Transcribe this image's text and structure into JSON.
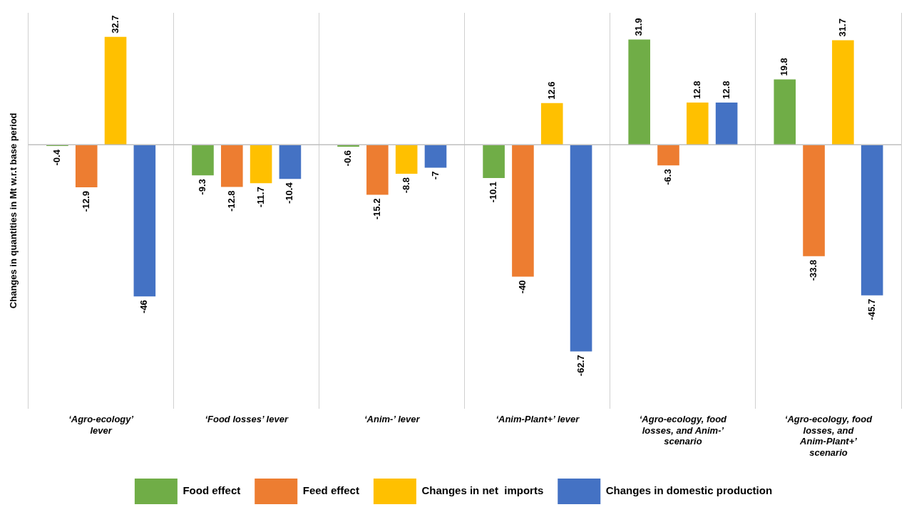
{
  "chart_data": {
    "type": "bar",
    "ylabel": "Changes in quantities in Mt w.r.t base period",
    "categories": [
      "‘Agro-ecology’ lever",
      "‘Food losses’ lever",
      "‘Anim-’ lever",
      "‘Anim-Plant+’ lever",
      "‘Agro-ecology, food losses, and Anim-’ scenario",
      "‘Agro-ecology, food losses, and Anim-Plant+’ scenario"
    ],
    "series": [
      {
        "name": "Food effect",
        "color": "#70ad47",
        "values": [
          -0.4,
          -9.3,
          -0.6,
          -10.1,
          31.9,
          19.8
        ]
      },
      {
        "name": "Feed effect",
        "color": "#ed7d31",
        "values": [
          -12.9,
          -12.8,
          -15.2,
          -40,
          -6.3,
          -33.8
        ]
      },
      {
        "name": "Changes in net  imports",
        "color": "#ffc000",
        "values": [
          32.7,
          -11.7,
          -8.8,
          12.6,
          12.8,
          31.7
        ]
      },
      {
        "name": "Changes in domestic production",
        "color": "#4472c4",
        "values": [
          -46,
          -10.4,
          -7,
          -62.7,
          12.8,
          -45.7
        ]
      }
    ],
    "data_labels": true,
    "grid": "x",
    "legend": "bottom"
  }
}
